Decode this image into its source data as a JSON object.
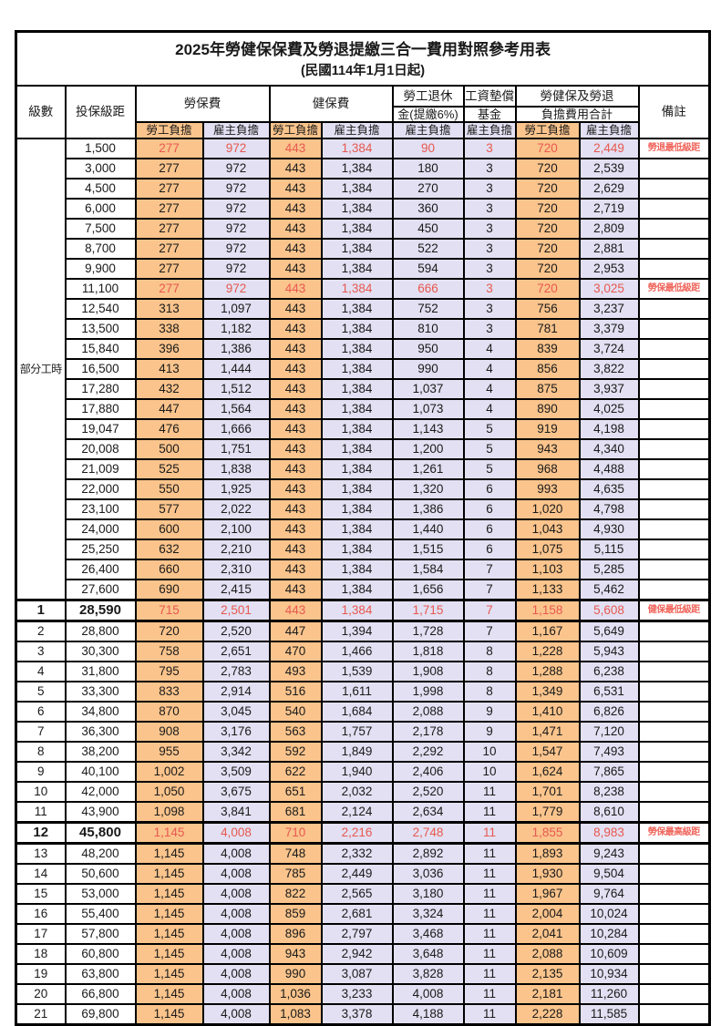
{
  "title": "2025年勞健保保費及勞退提繳三合一費用對照參考用表",
  "subtitle": "(民國114年1月1日起)",
  "header": {
    "level": "級數",
    "bracket": "投保級距",
    "labor_insurance": "勞保費",
    "health_insurance": "健保費",
    "pension_line1": "勞工退休",
    "pension_line2": "金(提繳6%)",
    "wage_fund_line1": "工資墊償",
    "wage_fund_line2": "基金",
    "total_line1": "勞健保及勞退",
    "total_line2": "負擔費用合計",
    "remark": "備註",
    "employee_share": "勞工負擔",
    "employer_share": "雇主負擔"
  },
  "part_time_label": "部分工時",
  "colors": {
    "employee_bg": "#FAC48C",
    "employer_bg": "#E2E0F2",
    "highlight_text": "#E85850",
    "remark_text": "#F0665C",
    "border": "#000000"
  },
  "rows": [
    {
      "bracket": "1,500",
      "li_emp": "277",
      "li_er": "972",
      "hi_emp": "443",
      "hi_er": "1,384",
      "pension": "90",
      "fund": "3",
      "tot_emp": "720",
      "tot_er": "2,449",
      "remark": "勞退最低級距",
      "hl": true
    },
    {
      "bracket": "3,000",
      "li_emp": "277",
      "li_er": "972",
      "hi_emp": "443",
      "hi_er": "1,384",
      "pension": "180",
      "fund": "3",
      "tot_emp": "720",
      "tot_er": "2,539"
    },
    {
      "bracket": "4,500",
      "li_emp": "277",
      "li_er": "972",
      "hi_emp": "443",
      "hi_er": "1,384",
      "pension": "270",
      "fund": "3",
      "tot_emp": "720",
      "tot_er": "2,629"
    },
    {
      "bracket": "6,000",
      "li_emp": "277",
      "li_er": "972",
      "hi_emp": "443",
      "hi_er": "1,384",
      "pension": "360",
      "fund": "3",
      "tot_emp": "720",
      "tot_er": "2,719"
    },
    {
      "bracket": "7,500",
      "li_emp": "277",
      "li_er": "972",
      "hi_emp": "443",
      "hi_er": "1,384",
      "pension": "450",
      "fund": "3",
      "tot_emp": "720",
      "tot_er": "2,809"
    },
    {
      "bracket": "8,700",
      "li_emp": "277",
      "li_er": "972",
      "hi_emp": "443",
      "hi_er": "1,384",
      "pension": "522",
      "fund": "3",
      "tot_emp": "720",
      "tot_er": "2,881"
    },
    {
      "bracket": "9,900",
      "li_emp": "277",
      "li_er": "972",
      "hi_emp": "443",
      "hi_er": "1,384",
      "pension": "594",
      "fund": "3",
      "tot_emp": "720",
      "tot_er": "2,953"
    },
    {
      "bracket": "11,100",
      "li_emp": "277",
      "li_er": "972",
      "hi_emp": "443",
      "hi_er": "1,384",
      "pension": "666",
      "fund": "3",
      "tot_emp": "720",
      "tot_er": "3,025",
      "remark": "勞保最低級距",
      "hl": true
    },
    {
      "bracket": "12,540",
      "li_emp": "313",
      "li_er": "1,097",
      "hi_emp": "443",
      "hi_er": "1,384",
      "pension": "752",
      "fund": "3",
      "tot_emp": "756",
      "tot_er": "3,237"
    },
    {
      "bracket": "13,500",
      "li_emp": "338",
      "li_er": "1,182",
      "hi_emp": "443",
      "hi_er": "1,384",
      "pension": "810",
      "fund": "3",
      "tot_emp": "781",
      "tot_er": "3,379"
    },
    {
      "bracket": "15,840",
      "li_emp": "396",
      "li_er": "1,386",
      "hi_emp": "443",
      "hi_er": "1,384",
      "pension": "950",
      "fund": "4",
      "tot_emp": "839",
      "tot_er": "3,724"
    },
    {
      "bracket": "16,500",
      "li_emp": "413",
      "li_er": "1,444",
      "hi_emp": "443",
      "hi_er": "1,384",
      "pension": "990",
      "fund": "4",
      "tot_emp": "856",
      "tot_er": "3,822"
    },
    {
      "bracket": "17,280",
      "li_emp": "432",
      "li_er": "1,512",
      "hi_emp": "443",
      "hi_er": "1,384",
      "pension": "1,037",
      "fund": "4",
      "tot_emp": "875",
      "tot_er": "3,937"
    },
    {
      "bracket": "17,880",
      "li_emp": "447",
      "li_er": "1,564",
      "hi_emp": "443",
      "hi_er": "1,384",
      "pension": "1,073",
      "fund": "4",
      "tot_emp": "890",
      "tot_er": "4,025"
    },
    {
      "bracket": "19,047",
      "li_emp": "476",
      "li_er": "1,666",
      "hi_emp": "443",
      "hi_er": "1,384",
      "pension": "1,143",
      "fund": "5",
      "tot_emp": "919",
      "tot_er": "4,198"
    },
    {
      "bracket": "20,008",
      "li_emp": "500",
      "li_er": "1,751",
      "hi_emp": "443",
      "hi_er": "1,384",
      "pension": "1,200",
      "fund": "5",
      "tot_emp": "943",
      "tot_er": "4,340"
    },
    {
      "bracket": "21,009",
      "li_emp": "525",
      "li_er": "1,838",
      "hi_emp": "443",
      "hi_er": "1,384",
      "pension": "1,261",
      "fund": "5",
      "tot_emp": "968",
      "tot_er": "4,488"
    },
    {
      "bracket": "22,000",
      "li_emp": "550",
      "li_er": "1,925",
      "hi_emp": "443",
      "hi_er": "1,384",
      "pension": "1,320",
      "fund": "6",
      "tot_emp": "993",
      "tot_er": "4,635"
    },
    {
      "bracket": "23,100",
      "li_emp": "577",
      "li_er": "2,022",
      "hi_emp": "443",
      "hi_er": "1,384",
      "pension": "1,386",
      "fund": "6",
      "tot_emp": "1,020",
      "tot_er": "4,798"
    },
    {
      "bracket": "24,000",
      "li_emp": "600",
      "li_er": "2,100",
      "hi_emp": "443",
      "hi_er": "1,384",
      "pension": "1,440",
      "fund": "6",
      "tot_emp": "1,043",
      "tot_er": "4,930"
    },
    {
      "bracket": "25,250",
      "li_emp": "632",
      "li_er": "2,210",
      "hi_emp": "443",
      "hi_er": "1,384",
      "pension": "1,515",
      "fund": "6",
      "tot_emp": "1,075",
      "tot_er": "5,115"
    },
    {
      "bracket": "26,400",
      "li_emp": "660",
      "li_er": "2,310",
      "hi_emp": "443",
      "hi_er": "1,384",
      "pension": "1,584",
      "fund": "7",
      "tot_emp": "1,103",
      "tot_er": "5,285"
    },
    {
      "bracket": "27,600",
      "li_emp": "690",
      "li_er": "2,415",
      "hi_emp": "443",
      "hi_er": "1,384",
      "pension": "1,656",
      "fund": "7",
      "tot_emp": "1,133",
      "tot_er": "5,462"
    },
    {
      "level": "1",
      "bracket": "28,590",
      "li_emp": "715",
      "li_er": "2,501",
      "hi_emp": "443",
      "hi_er": "1,384",
      "pension": "1,715",
      "fund": "7",
      "tot_emp": "1,158",
      "tot_er": "5,608",
      "remark": "健保最低級距",
      "hl": true,
      "major": true
    },
    {
      "level": "2",
      "bracket": "28,800",
      "li_emp": "720",
      "li_er": "2,520",
      "hi_emp": "447",
      "hi_er": "1,394",
      "pension": "1,728",
      "fund": "7",
      "tot_emp": "1,167",
      "tot_er": "5,649"
    },
    {
      "level": "3",
      "bracket": "30,300",
      "li_emp": "758",
      "li_er": "2,651",
      "hi_emp": "470",
      "hi_er": "1,466",
      "pension": "1,818",
      "fund": "8",
      "tot_emp": "1,228",
      "tot_er": "5,943"
    },
    {
      "level": "4",
      "bracket": "31,800",
      "li_emp": "795",
      "li_er": "2,783",
      "hi_emp": "493",
      "hi_er": "1,539",
      "pension": "1,908",
      "fund": "8",
      "tot_emp": "1,288",
      "tot_er": "6,238"
    },
    {
      "level": "5",
      "bracket": "33,300",
      "li_emp": "833",
      "li_er": "2,914",
      "hi_emp": "516",
      "hi_er": "1,611",
      "pension": "1,998",
      "fund": "8",
      "tot_emp": "1,349",
      "tot_er": "6,531"
    },
    {
      "level": "6",
      "bracket": "34,800",
      "li_emp": "870",
      "li_er": "3,045",
      "hi_emp": "540",
      "hi_er": "1,684",
      "pension": "2,088",
      "fund": "9",
      "tot_emp": "1,410",
      "tot_er": "6,826"
    },
    {
      "level": "7",
      "bracket": "36,300",
      "li_emp": "908",
      "li_er": "3,176",
      "hi_emp": "563",
      "hi_er": "1,757",
      "pension": "2,178",
      "fund": "9",
      "tot_emp": "1,471",
      "tot_er": "7,120"
    },
    {
      "level": "8",
      "bracket": "38,200",
      "li_emp": "955",
      "li_er": "3,342",
      "hi_emp": "592",
      "hi_er": "1,849",
      "pension": "2,292",
      "fund": "10",
      "tot_emp": "1,547",
      "tot_er": "7,493"
    },
    {
      "level": "9",
      "bracket": "40,100",
      "li_emp": "1,002",
      "li_er": "3,509",
      "hi_emp": "622",
      "hi_er": "1,940",
      "pension": "2,406",
      "fund": "10",
      "tot_emp": "1,624",
      "tot_er": "7,865"
    },
    {
      "level": "10",
      "bracket": "42,000",
      "li_emp": "1,050",
      "li_er": "3,675",
      "hi_emp": "651",
      "hi_er": "2,032",
      "pension": "2,520",
      "fund": "11",
      "tot_emp": "1,701",
      "tot_er": "8,238"
    },
    {
      "level": "11",
      "bracket": "43,900",
      "li_emp": "1,098",
      "li_er": "3,841",
      "hi_emp": "681",
      "hi_er": "2,124",
      "pension": "2,634",
      "fund": "11",
      "tot_emp": "1,779",
      "tot_er": "8,610"
    },
    {
      "level": "12",
      "bracket": "45,800",
      "li_emp": "1,145",
      "li_er": "4,008",
      "hi_emp": "710",
      "hi_er": "2,216",
      "pension": "2,748",
      "fund": "11",
      "tot_emp": "1,855",
      "tot_er": "8,983",
      "remark": "勞保最高級距",
      "hl": true,
      "major": true
    },
    {
      "level": "13",
      "bracket": "48,200",
      "li_emp": "1,145",
      "li_er": "4,008",
      "hi_emp": "748",
      "hi_er": "2,332",
      "pension": "2,892",
      "fund": "11",
      "tot_emp": "1,893",
      "tot_er": "9,243"
    },
    {
      "level": "14",
      "bracket": "50,600",
      "li_emp": "1,145",
      "li_er": "4,008",
      "hi_emp": "785",
      "hi_er": "2,449",
      "pension": "3,036",
      "fund": "11",
      "tot_emp": "1,930",
      "tot_er": "9,504"
    },
    {
      "level": "15",
      "bracket": "53,000",
      "li_emp": "1,145",
      "li_er": "4,008",
      "hi_emp": "822",
      "hi_er": "2,565",
      "pension": "3,180",
      "fund": "11",
      "tot_emp": "1,967",
      "tot_er": "9,764"
    },
    {
      "level": "16",
      "bracket": "55,400",
      "li_emp": "1,145",
      "li_er": "4,008",
      "hi_emp": "859",
      "hi_er": "2,681",
      "pension": "3,324",
      "fund": "11",
      "tot_emp": "2,004",
      "tot_er": "10,024"
    },
    {
      "level": "17",
      "bracket": "57,800",
      "li_emp": "1,145",
      "li_er": "4,008",
      "hi_emp": "896",
      "hi_er": "2,797",
      "pension": "3,468",
      "fund": "11",
      "tot_emp": "2,041",
      "tot_er": "10,284"
    },
    {
      "level": "18",
      "bracket": "60,800",
      "li_emp": "1,145",
      "li_er": "4,008",
      "hi_emp": "943",
      "hi_er": "2,942",
      "pension": "3,648",
      "fund": "11",
      "tot_emp": "2,088",
      "tot_er": "10,609"
    },
    {
      "level": "19",
      "bracket": "63,800",
      "li_emp": "1,145",
      "li_er": "4,008",
      "hi_emp": "990",
      "hi_er": "3,087",
      "pension": "3,828",
      "fund": "11",
      "tot_emp": "2,135",
      "tot_er": "10,934"
    },
    {
      "level": "20",
      "bracket": "66,800",
      "li_emp": "1,145",
      "li_er": "4,008",
      "hi_emp": "1,036",
      "hi_er": "3,233",
      "pension": "4,008",
      "fund": "11",
      "tot_emp": "2,181",
      "tot_er": "11,260"
    },
    {
      "level": "21",
      "bracket": "69,800",
      "li_emp": "1,145",
      "li_er": "4,008",
      "hi_emp": "1,083",
      "hi_er": "3,378",
      "pension": "4,188",
      "fund": "11",
      "tot_emp": "2,228",
      "tot_er": "11,585"
    }
  ]
}
